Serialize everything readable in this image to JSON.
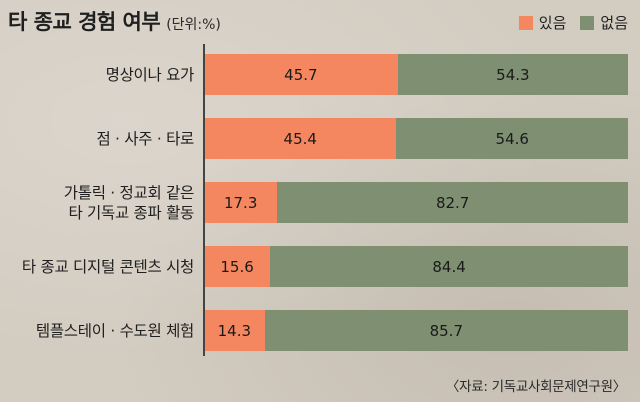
{
  "colors": {
    "yes": "#f4875f",
    "no": "#7e8f72"
  },
  "chart_data": {
    "type": "bar",
    "orientation": "horizontal",
    "stacked": true,
    "title": "타 종교 경험 여부",
    "unit": "(단위:%)",
    "categories": [
      [
        "명상이나 요가"
      ],
      [
        "점 · 사주 · 타로"
      ],
      [
        "가톨릭 · 정교회 같은",
        "타 기독교 종파 활동"
      ],
      [
        "타 종교 디지털 콘텐츠 시청"
      ],
      [
        "템플스테이 · 수도원 체험"
      ]
    ],
    "series": [
      {
        "name": "있음",
        "values": [
          45.7,
          45.4,
          17.3,
          15.6,
          14.3
        ]
      },
      {
        "name": "없음",
        "values": [
          54.3,
          54.6,
          82.7,
          84.4,
          85.7
        ]
      }
    ],
    "xlim": [
      0,
      100
    ],
    "legend_position": "top-right",
    "source": "〈자료: 기독교사회문제연구원〉"
  }
}
